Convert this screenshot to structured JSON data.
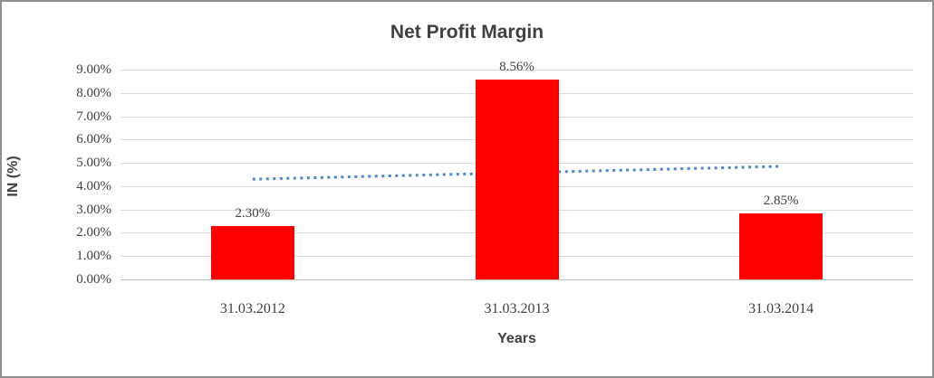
{
  "chart_data": {
    "type": "bar",
    "title": "Net Profit Margin",
    "xlabel": "Years",
    "ylabel": "IN (%)",
    "categories": [
      "31.03.2012",
      "31.03.2013",
      "31.03.2014"
    ],
    "values": [
      2.3,
      8.56,
      2.85
    ],
    "data_labels": [
      "2.30%",
      "8.56%",
      "2.85%"
    ],
    "ylim": [
      0,
      9
    ],
    "ytick_step": 1,
    "yticks": [
      "0.00%",
      "1.00%",
      "2.00%",
      "3.00%",
      "4.00%",
      "5.00%",
      "6.00%",
      "7.00%",
      "8.00%",
      "9.00%"
    ],
    "grid": true,
    "legend": "none",
    "bar_color": "#ff0000",
    "text_color": "#404040",
    "gridline_color": "#d9d9d9",
    "trendline": {
      "style": "dotted",
      "color": "#4e87c8",
      "start_value": 4.3,
      "end_value": 4.85
    }
  }
}
